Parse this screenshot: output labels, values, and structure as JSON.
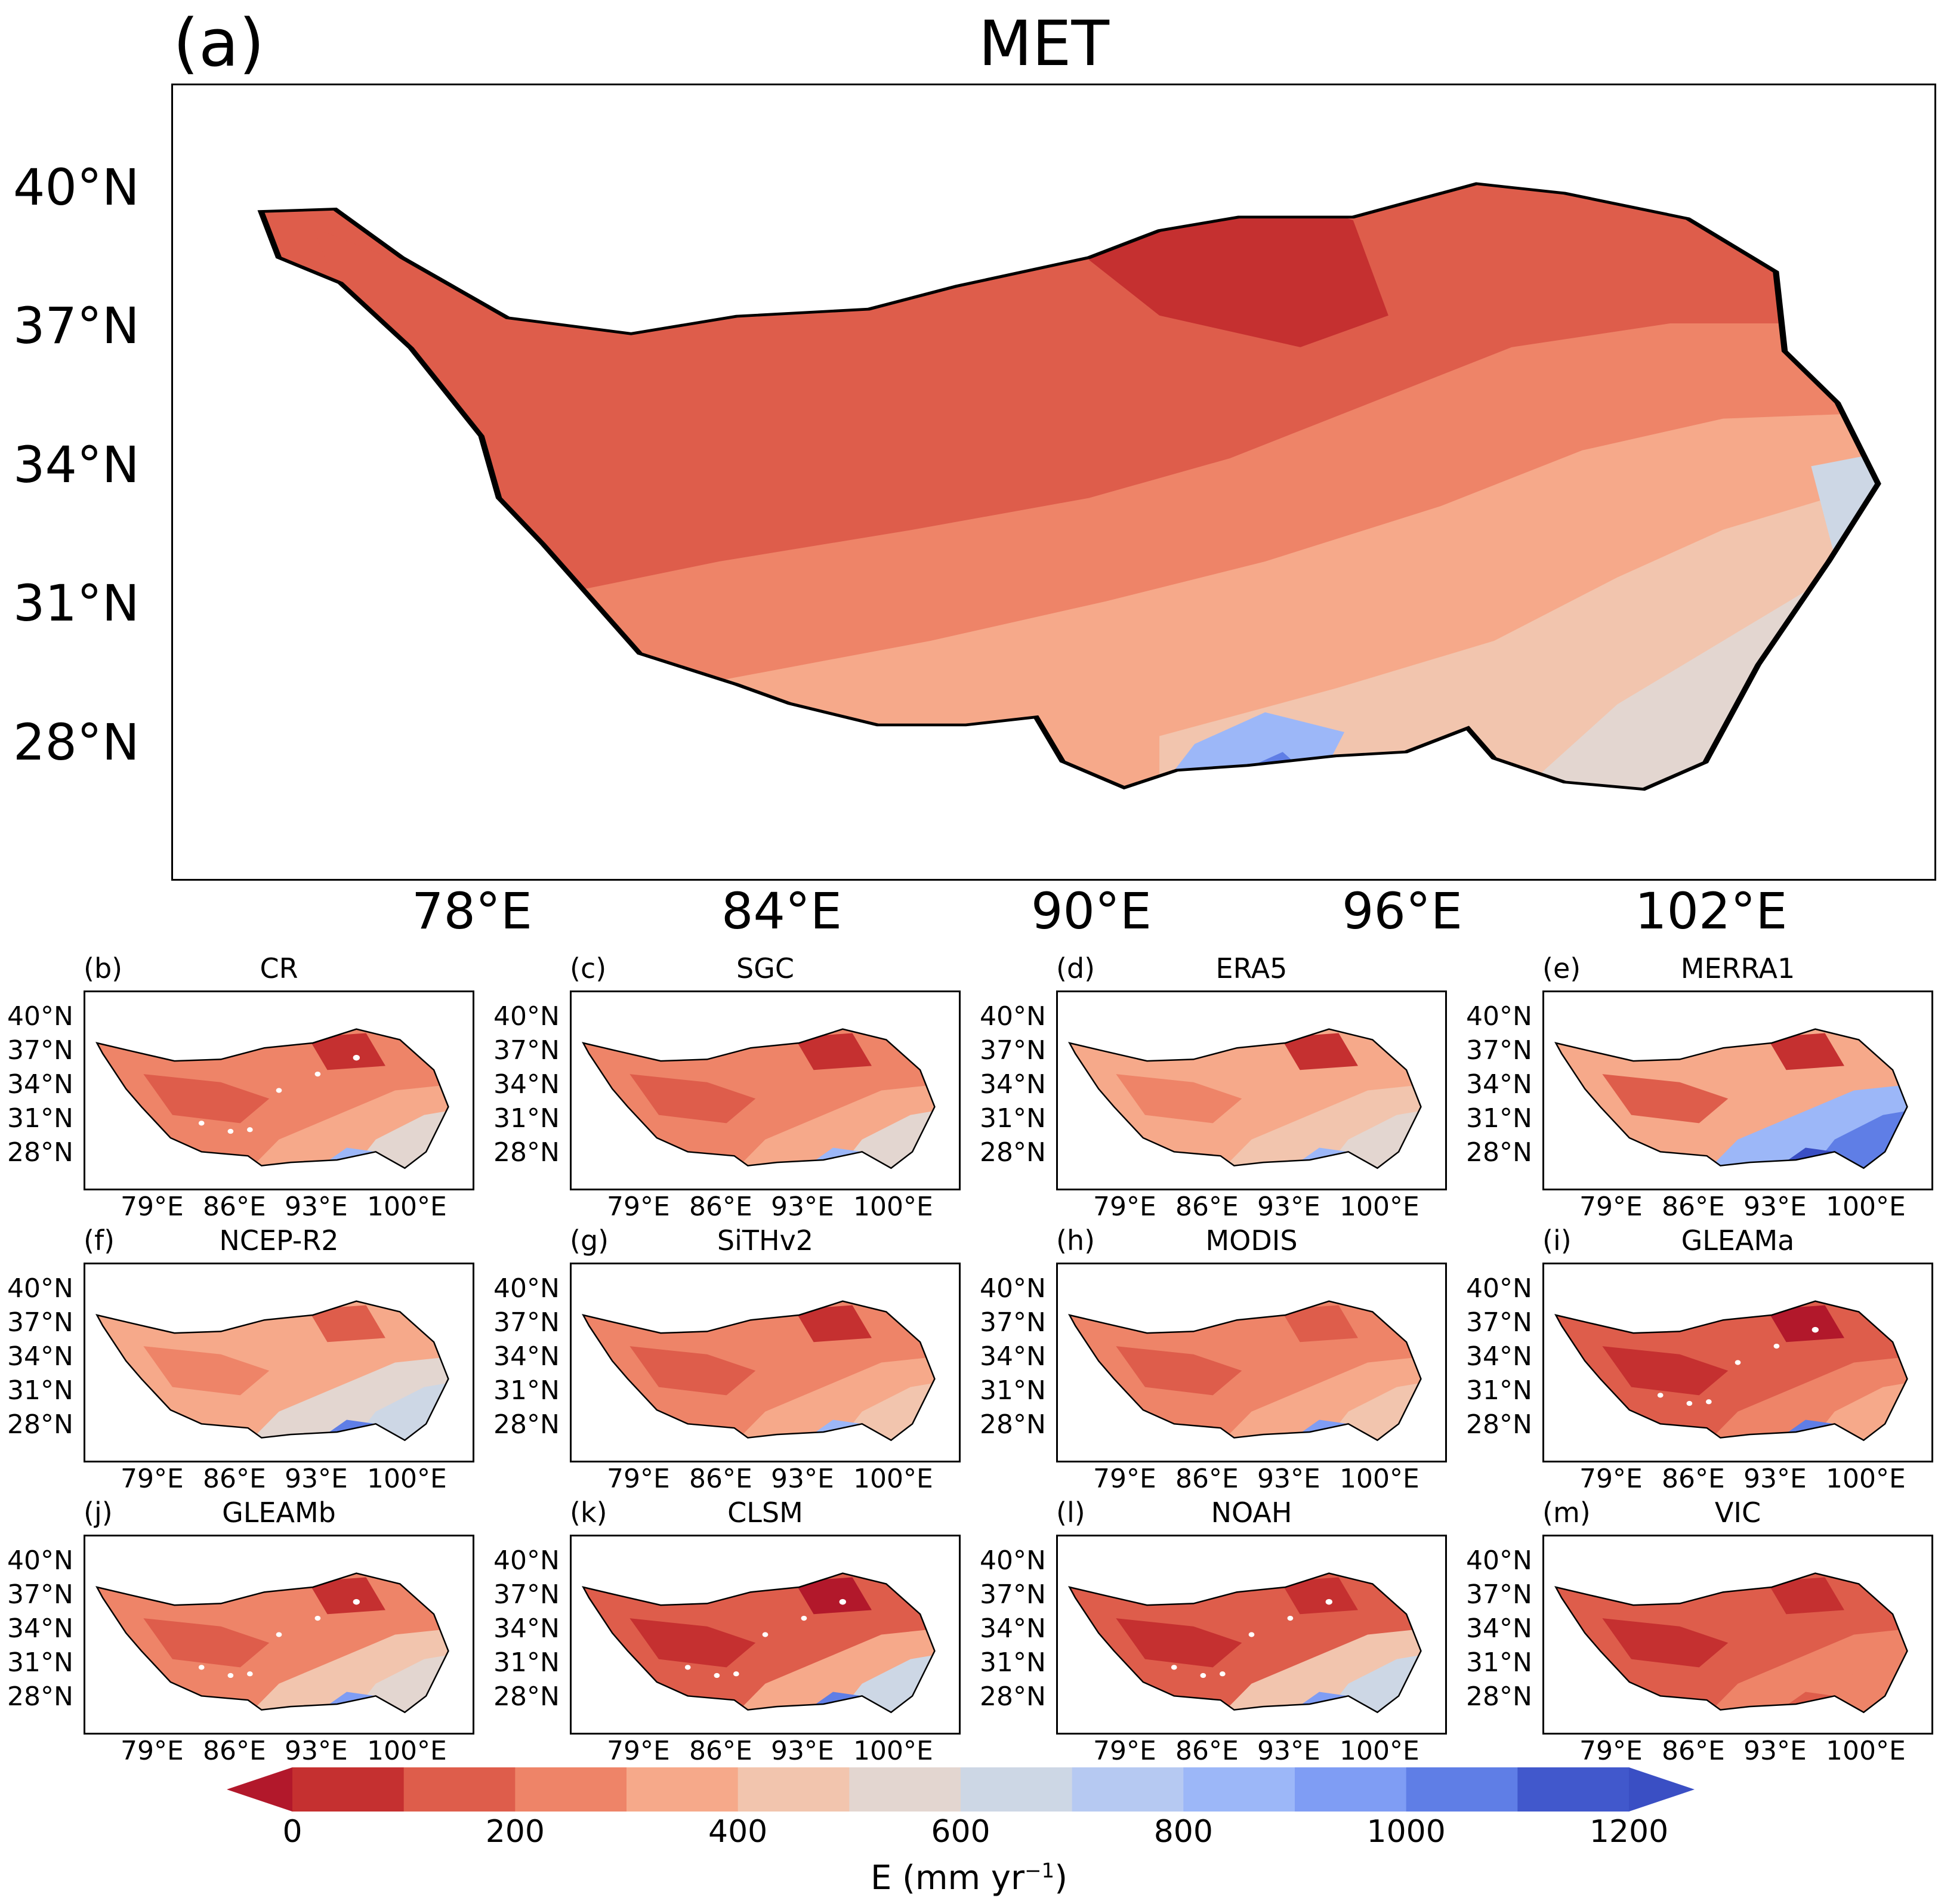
{
  "main": {
    "letter": "(a)",
    "title": "MET",
    "lat_ticks": [
      "40°N",
      "37°N",
      "34°N",
      "31°N",
      "28°N"
    ],
    "lon_ticks": [
      "78°E",
      "84°E",
      "90°E",
      "96°E",
      "102°E"
    ]
  },
  "panels": [
    {
      "letter": "(b)",
      "title": "CR",
      "theme": "cr"
    },
    {
      "letter": "(c)",
      "title": "SGC",
      "theme": "sgc"
    },
    {
      "letter": "(d)",
      "title": "ERA5",
      "theme": "era5"
    },
    {
      "letter": "(e)",
      "title": "MERRA1",
      "theme": "merra"
    },
    {
      "letter": "(f)",
      "title": "NCEP-R2",
      "theme": "ncep"
    },
    {
      "letter": "(g)",
      "title": "SiTHv2",
      "theme": "sith"
    },
    {
      "letter": "(h)",
      "title": "MODIS",
      "theme": "modis"
    },
    {
      "letter": "(i)",
      "title": "GLEAMa",
      "theme": "gleama"
    },
    {
      "letter": "(j)",
      "title": "GLEAMb",
      "theme": "gleamb"
    },
    {
      "letter": "(k)",
      "title": "CLSM",
      "theme": "clsm"
    },
    {
      "letter": "(l)",
      "title": "NOAH",
      "theme": "noah"
    },
    {
      "letter": "(m)",
      "title": "VIC",
      "theme": "vic"
    }
  ],
  "small_lat_ticks": [
    "40°N",
    "37°N",
    "34°N",
    "31°N",
    "28°N"
  ],
  "small_lon_ticks": [
    "79°E",
    "86°E",
    "93°E",
    "100°E"
  ],
  "colorbar": {
    "label_main": "E (mm yr",
    "label_sup": "−1",
    "label_close": ")",
    "ticks": [
      "0",
      "200",
      "400",
      "600",
      "800",
      "1000",
      "1200"
    ],
    "bounds": [
      0,
      1200
    ],
    "step": 100,
    "extend": "both",
    "colors": [
      "#b2182b",
      "#c53030",
      "#de5d4b",
      "#ee8468",
      "#f6a98a",
      "#f2c5ae",
      "#e3d6d0",
      "#cdd7e5",
      "#b6c9f2",
      "#9cb7f8",
      "#7f9df4",
      "#5f7ee6",
      "#4158cc",
      "#3a4fc4"
    ]
  }
}
